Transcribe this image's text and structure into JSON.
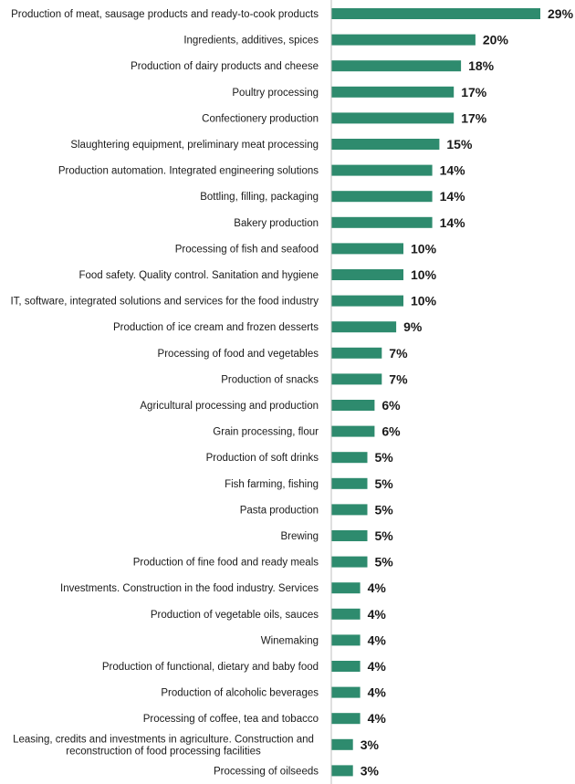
{
  "chart_data": {
    "type": "bar",
    "orientation": "horizontal",
    "categories": [
      "Production of meat, sausage products and ready-to-cook products",
      "Ingredients, additives, spices",
      "Production of dairy products and cheese",
      "Poultry processing",
      "Confectionery production",
      "Slaughtering equipment, preliminary meat processing",
      "Production automation. Integrated engineering solutions",
      "Bottling, filling, packaging",
      "Bakery production",
      "Processing of fish and seafood",
      "Food safety. Quality control. Sanitation and hygiene",
      "IT, software, integrated solutions and services for the food industry",
      "Production of ice cream and frozen desserts",
      "Processing of food and vegetables",
      "Production of snacks",
      "Agricultural processing and production",
      "Grain processing, flour",
      "Production of soft drinks",
      "Fish farming, fishing",
      "Pasta production",
      "Brewing",
      "Production of fine food and ready meals",
      "Investments. Construction in the food industry. Services",
      "Production of vegetable oils, sauces",
      "Winemaking",
      "Production of functional, dietary and baby food",
      "Production of alcoholic beverages",
      "Processing of coffee, tea and tobacco",
      "Leasing, credits and investments in agriculture. Construction and reconstruction of food processing facilities",
      "Processing of oilseeds"
    ],
    "label_lines": [
      [
        "Production of meat, sausage products and ready-to-cook products"
      ],
      [
        "Ingredients, additives, spices"
      ],
      [
        "Production of dairy products and cheese"
      ],
      [
        "Poultry processing"
      ],
      [
        "Confectionery production"
      ],
      [
        "Slaughtering equipment, preliminary meat processing"
      ],
      [
        "Production automation. Integrated engineering solutions"
      ],
      [
        "Bottling, filling, packaging"
      ],
      [
        "Bakery production"
      ],
      [
        "Processing of fish and seafood"
      ],
      [
        "Food safety. Quality control. Sanitation and hygiene"
      ],
      [
        "IT, software, integrated solutions and services for the food industry"
      ],
      [
        "Production of ice cream and frozen desserts"
      ],
      [
        "Processing of food and vegetables"
      ],
      [
        "Production of snacks"
      ],
      [
        "Agricultural processing and production"
      ],
      [
        "Grain processing, flour"
      ],
      [
        "Production of soft drinks"
      ],
      [
        "Fish farming, fishing"
      ],
      [
        "Pasta production"
      ],
      [
        "Brewing"
      ],
      [
        "Production of fine food and ready meals"
      ],
      [
        "Investments. Construction in the food industry. Services"
      ],
      [
        "Production of vegetable oils, sauces"
      ],
      [
        "Winemaking"
      ],
      [
        "Production of functional, dietary and baby food"
      ],
      [
        "Production of alcoholic beverages"
      ],
      [
        "Processing of coffee, tea and tobacco"
      ],
      [
        "Leasing, credits and investments in agriculture. Construction and",
        "reconstruction of food processing facilities"
      ],
      [
        "Processing of oilseeds"
      ]
    ],
    "values": [
      29,
      20,
      18,
      17,
      17,
      15,
      14,
      14,
      14,
      10,
      10,
      10,
      9,
      7,
      7,
      6,
      6,
      5,
      5,
      5,
      5,
      5,
      4,
      4,
      4,
      4,
      4,
      4,
      3,
      3
    ],
    "value_labels": [
      "29%",
      "20%",
      "18%",
      "17%",
      "17%",
      "15%",
      "14%",
      "14%",
      "14%",
      "10%",
      "10%",
      "10%",
      "9%",
      "7%",
      "7%",
      "6%",
      "6%",
      "5%",
      "5%",
      "5%",
      "5%",
      "5%",
      "4%",
      "4%",
      "4%",
      "4%",
      "4%",
      "4%",
      "3%",
      "3%"
    ],
    "unit": "%",
    "xlim": [
      0,
      29
    ],
    "bar_color": "#2e8b6e",
    "axis_color": "#bfbfbf",
    "title": "",
    "xlabel": "",
    "ylabel": "",
    "grid": false,
    "legend": "none"
  }
}
